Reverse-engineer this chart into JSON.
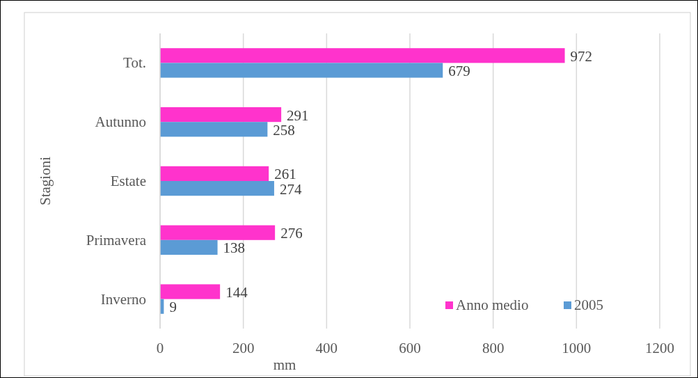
{
  "chart_data": {
    "type": "bar",
    "orientation": "horizontal",
    "categories": [
      "Tot.",
      "Autunno",
      "Estate",
      "Primavera",
      "Inverno"
    ],
    "series": [
      {
        "name": "Anno medio",
        "color": "#ff33cc",
        "values": [
          972,
          291,
          261,
          276,
          144
        ]
      },
      {
        "name": "2005",
        "color": "#5b9bd5",
        "values": [
          679,
          258,
          274,
          138,
          9
        ]
      }
    ],
    "xlim": [
      0,
      1200
    ],
    "xticks": [
      0,
      200,
      400,
      600,
      800,
      1000,
      1200
    ],
    "xlabel": "mm",
    "ylabel": "Stagioni",
    "grid": "x",
    "legend": "bottom right",
    "data_labels": true
  }
}
